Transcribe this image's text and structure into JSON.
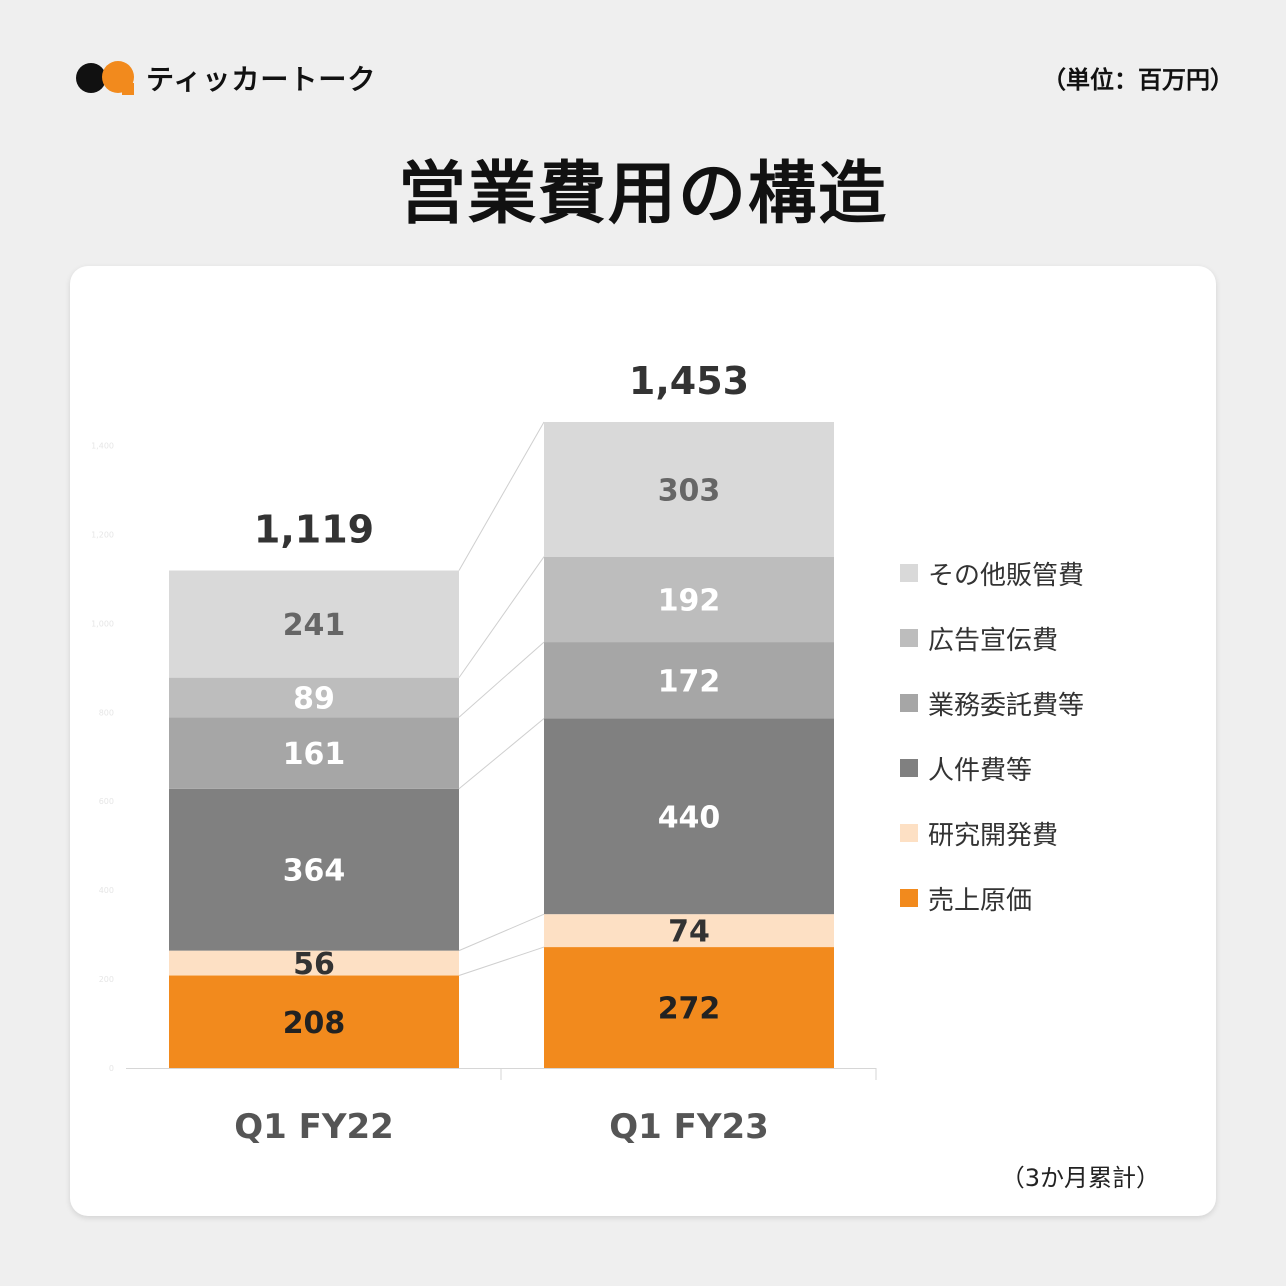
{
  "header": {
    "logo_text": "ティッカートーク",
    "unit": "（単位：百万円）"
  },
  "title": "営業費用の構造",
  "note": "（3か月累計）",
  "colors": {
    "cost_of_sales": "#f28a1d",
    "rnd": "#fde0c4",
    "personnel": "#808080",
    "outsourcing": "#a6a6a6",
    "advertising": "#bdbdbd",
    "other_sga": "#d9d9d9"
  },
  "chart_data": {
    "type": "bar",
    "stacked": true,
    "categories": [
      "Q1 FY22",
      "Q1 FY23"
    ],
    "series": [
      {
        "name": "売上原価",
        "values": [
          208,
          272
        ],
        "color": "#f28a1d",
        "label_color": "#222222"
      },
      {
        "name": "研究開発費",
        "values": [
          56,
          74
        ],
        "color": "#fde0c4",
        "label_color": "#333333"
      },
      {
        "name": "人件費等",
        "values": [
          364,
          440
        ],
        "color": "#808080",
        "label_color": "#ffffff"
      },
      {
        "name": "業務委託費等",
        "values": [
          161,
          172
        ],
        "color": "#a6a6a6",
        "label_color": "#ffffff"
      },
      {
        "name": "広告宣伝費",
        "values": [
          89,
          192
        ],
        "color": "#bdbdbd",
        "label_color": "#ffffff"
      },
      {
        "name": "その他販管費",
        "values": [
          241,
          303
        ],
        "color": "#d9d9d9",
        "label_color": "#666666"
      }
    ],
    "totals": [
      "1,119",
      "1,453"
    ],
    "yaxis_ticks": [
      "0",
      "200",
      "400",
      "600",
      "800",
      "1,000",
      "1,200",
      "1,400"
    ],
    "ylim": [
      0,
      1453
    ],
    "legend_position": "right",
    "grid": false
  }
}
